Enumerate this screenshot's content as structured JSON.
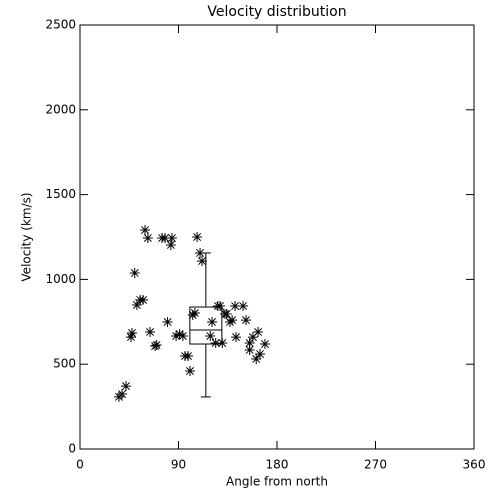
{
  "chart_data": {
    "type": "scatter",
    "title": "Velocity distribution",
    "x_label": "Angle from north",
    "y_label": "Velocity (km/s)",
    "color": "#000000",
    "x": [
      35.6,
      38.4,
      42,
      46.6,
      47.5,
      50,
      52,
      55,
      57.6,
      59.4,
      62,
      64,
      68.6,
      70,
      75,
      77.7,
      80,
      84,
      83,
      87.8,
      91,
      94,
      96,
      98.7,
      100.5,
      103,
      105,
      107,
      109.7,
      111.5,
      119,
      120.7,
      124,
      126,
      128,
      130,
      132.5,
      134,
      137,
      139,
      141.7,
      142.6,
      149,
      151.7,
      155,
      155,
      158,
      161,
      162.7,
      164.5,
      169
    ],
    "values": [
      307,
      324,
      371,
      660,
      684,
      1038,
      849,
      879,
      879,
      1291,
      1244,
      690,
      607,
      613,
      1244,
      1244,
      749,
      1244,
      1203,
      666,
      678,
      666,
      548,
      548,
      460,
      790,
      802,
      1250,
      1156,
      1108,
      666,
      749,
      625,
      843,
      843,
      625,
      796,
      796,
      749,
      760,
      843,
      660,
      843,
      760,
      625,
      584,
      660,
      531,
      690,
      560,
      619
    ],
    "box": {
      "x": 115,
      "whislo": 307,
      "q1": 619,
      "median": 702,
      "q3": 837,
      "whishi": 1156
    },
    "xlim": [
      0,
      360
    ],
    "xticks": [
      0,
      90,
      180,
      270,
      360
    ],
    "ylim": [
      0,
      2500
    ],
    "yticks": [
      0,
      500,
      1000,
      1500,
      2000,
      2500
    ]
  }
}
